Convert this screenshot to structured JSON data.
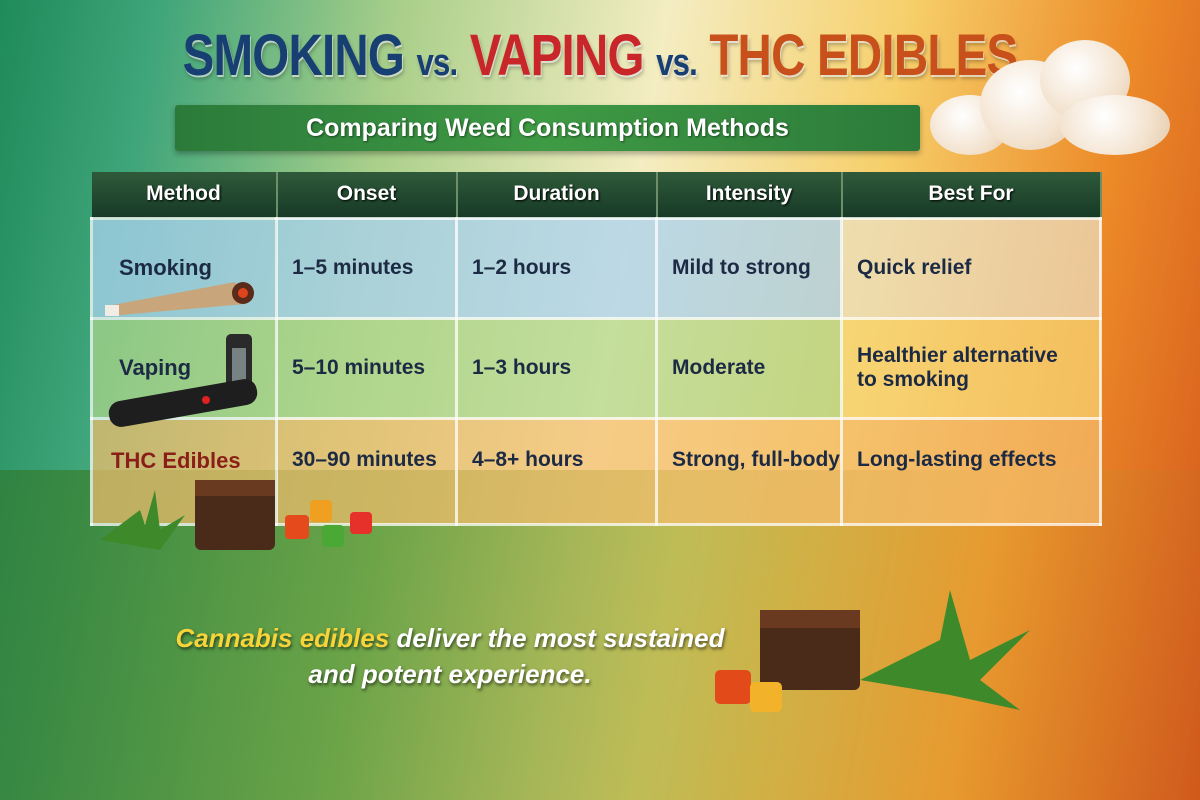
{
  "title": {
    "part1": "SMOKING",
    "vs1": "vs.",
    "part2": "VAPING",
    "vs2": "vs.",
    "part3": "THC EDIBLES"
  },
  "subtitle": "Comparing Weed Consumption Methods",
  "table": {
    "headers": [
      "Method",
      "Onset",
      "Duration",
      "Intensity",
      "Best For"
    ],
    "rows": [
      {
        "method": "Smoking",
        "onset": "1–5 minutes",
        "duration": "1–2 hours",
        "intensity": "Mild to strong",
        "best_for": "Quick relief"
      },
      {
        "method": "Vaping",
        "onset": "5–10 minutes",
        "duration": "1–3 hours",
        "intensity": "Moderate",
        "best_for": "Healthier alternative to smoking"
      },
      {
        "method": "THC Edibles",
        "onset": "30–90 minutes",
        "duration": "4–8+ hours",
        "intensity": "Strong, full-body",
        "best_for": "Long-lasting effects"
      }
    ]
  },
  "footer": {
    "highlight": "Cannabis edibles",
    "rest": " deliver the most sustained and potent experience."
  },
  "colors": {
    "title_blue": "#173f72",
    "title_red": "#c9262a",
    "title_orange": "#c8501a",
    "banner_green": "#3f9a44",
    "header_dark_green": "#173a26"
  },
  "icons": [
    "joint-icon",
    "vape-pen-icon",
    "brownie-icon",
    "gummies-icon",
    "cannabis-leaf-icon",
    "smoke-cloud-icon"
  ]
}
